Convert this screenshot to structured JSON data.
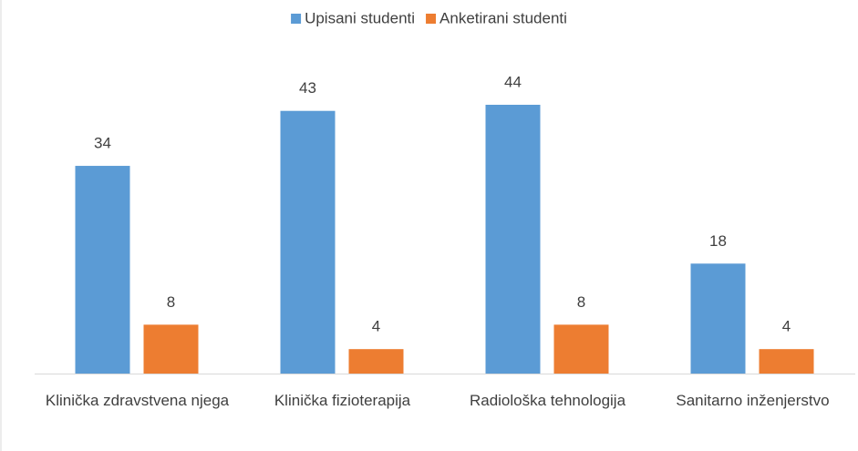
{
  "chart_data": {
    "type": "bar",
    "categories": [
      "Klinička zdravstvena njega",
      "Klinička fizioterapija",
      "Radiološka tehnologija",
      "Sanitarno inženjerstvo"
    ],
    "series": [
      {
        "name": "Upisani studenti",
        "color": "#5b9bd5",
        "values": [
          34,
          43,
          44,
          18
        ]
      },
      {
        "name": "Anketirani studenti",
        "color": "#ed7d31",
        "values": [
          8,
          4,
          8,
          4
        ]
      }
    ],
    "legend": "top"
  }
}
